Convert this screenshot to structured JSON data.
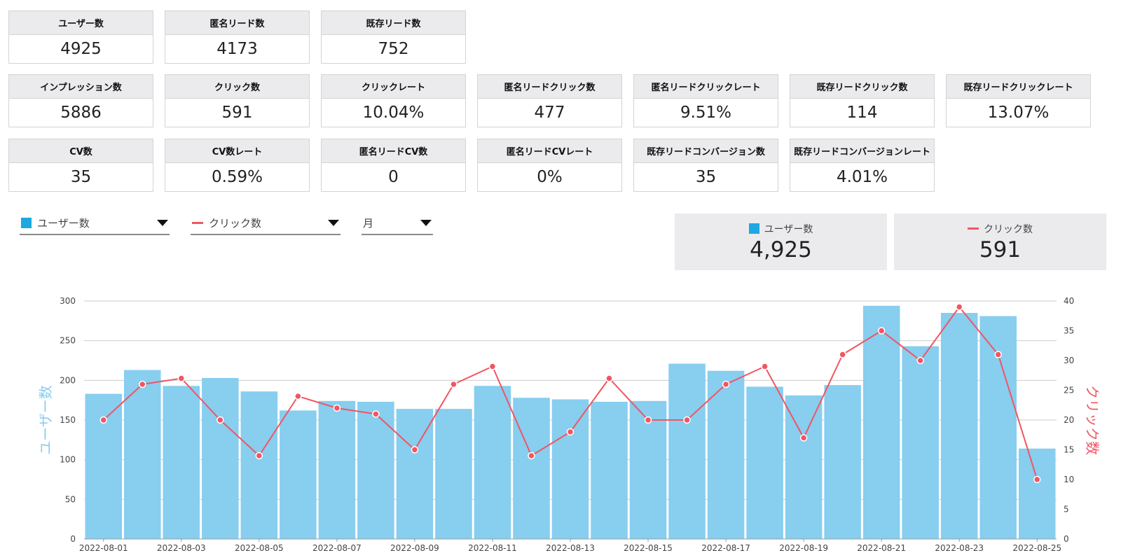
{
  "metrics": {
    "row1": [
      {
        "label": "ユーザー数",
        "value": "4925"
      },
      {
        "label": "匿名リード数",
        "value": "4173"
      },
      {
        "label": "既存リード数",
        "value": "752"
      }
    ],
    "row2": [
      {
        "label": "インプレッション数",
        "value": "5886"
      },
      {
        "label": "クリック数",
        "value": "591"
      },
      {
        "label": "クリックレート",
        "value": "10.04%"
      },
      {
        "label": "匿名リードクリック数",
        "value": "477"
      },
      {
        "label": "匿名リードクリックレート",
        "value": "9.51%"
      },
      {
        "label": "既存リードクリック数",
        "value": "114"
      },
      {
        "label": "既存リードクリックレート",
        "value": "13.07%"
      }
    ],
    "row3": [
      {
        "label": "CV数",
        "value": "35"
      },
      {
        "label": "CV数レート",
        "value": "0.59%"
      },
      {
        "label": "匿名リードCV数",
        "value": "0"
      },
      {
        "label": "匿名リードCVレート",
        "value": "0%"
      },
      {
        "label": "既存リードコンバージョン数",
        "value": "35"
      },
      {
        "label": "既存リードコンバージョンレート",
        "value": "4.01%"
      }
    ]
  },
  "selectors": {
    "bar_metric": "ユーザー数",
    "line_metric": "クリック数",
    "period": "月"
  },
  "summary": {
    "bar": {
      "label": "ユーザー数",
      "value": "4,925"
    },
    "line": {
      "label": "クリック数",
      "value": "591"
    }
  },
  "colors": {
    "bar": "#87ceef",
    "bar_legend": "#1ea7e1",
    "line": "#f25562",
    "grid": "#cccccc"
  },
  "chart_data": {
    "type": "bar",
    "categories": [
      "2022-08-01",
      "2022-08-02",
      "2022-08-03",
      "2022-08-04",
      "2022-08-05",
      "2022-08-06",
      "2022-08-07",
      "2022-08-08",
      "2022-08-09",
      "2022-08-10",
      "2022-08-11",
      "2022-08-12",
      "2022-08-13",
      "2022-08-14",
      "2022-08-15",
      "2022-08-16",
      "2022-08-17",
      "2022-08-18",
      "2022-08-19",
      "2022-08-20",
      "2022-08-21",
      "2022-08-22",
      "2022-08-23",
      "2022-08-24",
      "2022-08-25"
    ],
    "xtick_labels": [
      "2022-08-01",
      "2022-08-03",
      "2022-08-05",
      "2022-08-07",
      "2022-08-09",
      "2022-08-11",
      "2022-08-13",
      "2022-08-15",
      "2022-08-17",
      "2022-08-19",
      "2022-08-21",
      "2022-08-23",
      "2022-08-25"
    ],
    "series": [
      {
        "name": "ユーザー数",
        "type": "bar",
        "axis": "left",
        "values": [
          183,
          213,
          193,
          203,
          186,
          162,
          174,
          173,
          164,
          164,
          193,
          178,
          176,
          173,
          174,
          221,
          212,
          192,
          181,
          194,
          294,
          243,
          285,
          281,
          114
        ]
      },
      {
        "name": "クリック数",
        "type": "line",
        "axis": "right",
        "values": [
          20,
          26,
          27,
          20,
          14,
          24,
          22,
          21,
          15,
          26,
          29,
          14,
          18,
          27,
          20,
          20,
          26,
          29,
          17,
          31,
          35,
          30,
          39,
          31,
          10
        ]
      }
    ],
    "ylabel": "ユーザー数",
    "y2label": "クリック数",
    "ylim": [
      0,
      300
    ],
    "y2lim": [
      0,
      40
    ],
    "yticks": [
      0,
      50,
      100,
      150,
      200,
      250,
      300
    ],
    "y2ticks": [
      0,
      5,
      10,
      15,
      20,
      25,
      30,
      35,
      40
    ],
    "grid": true
  }
}
